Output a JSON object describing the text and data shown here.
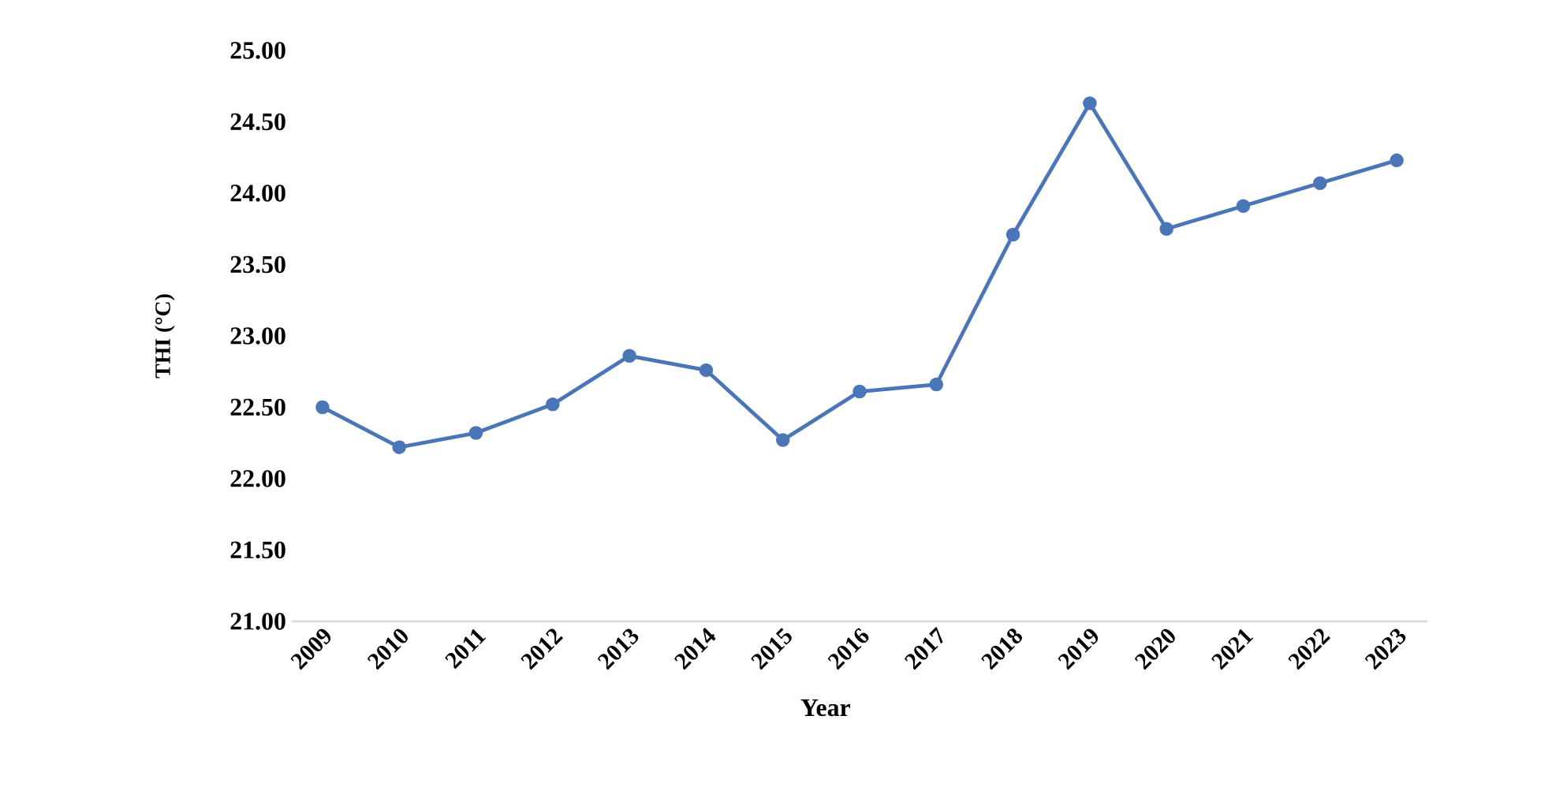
{
  "chart_data": {
    "type": "line",
    "xlabel": "Year",
    "ylabel": "THI (°C)",
    "categories": [
      "2009",
      "2010",
      "2011",
      "2012",
      "2013",
      "2014",
      "2015",
      "2016",
      "2017",
      "2018",
      "2019",
      "2020",
      "2021",
      "2022",
      "2023"
    ],
    "series": [
      {
        "color": "#4a76b8",
        "values": [
          22.5,
          22.22,
          22.32,
          22.52,
          22.86,
          22.76,
          22.27,
          22.61,
          22.66,
          23.71,
          24.63,
          23.75,
          23.91,
          24.07,
          24.23
        ]
      }
    ],
    "ylim": [
      21,
      25
    ],
    "yticks": [
      {
        "value": 21,
        "label": "21.00"
      },
      {
        "value": 21.5,
        "label": "21.50"
      },
      {
        "value": 22,
        "label": "22.00"
      },
      {
        "value": 22.5,
        "label": "22.50"
      },
      {
        "value": 23,
        "label": "23.00"
      },
      {
        "value": 23.5,
        "label": "23.50"
      },
      {
        "value": 24,
        "label": "24.00"
      },
      {
        "value": 24.5,
        "label": "24.50"
      },
      {
        "value": 25,
        "label": "25.00"
      }
    ],
    "grid": false,
    "marker": "circle",
    "line_style": "solid"
  }
}
